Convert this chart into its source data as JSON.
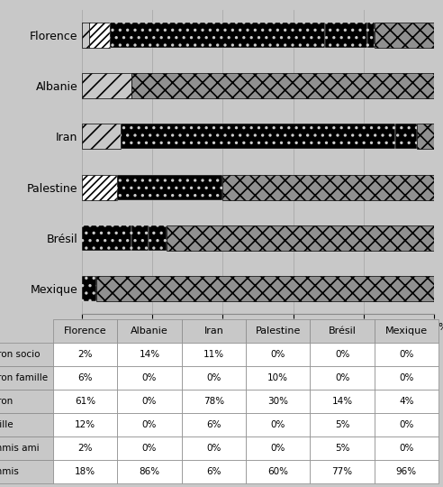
{
  "categories": [
    "Florence",
    "Albanie",
    "Iran",
    "Palestine",
    "Brésil",
    "Mexique"
  ],
  "row_labels": [
    "patron socio",
    "patron famille",
    "patron",
    "famille",
    "commis ami",
    "commis"
  ],
  "data": {
    "Florence": [
      2,
      6,
      61,
      12,
      2,
      18
    ],
    "Albanie": [
      14,
      0,
      0,
      0,
      0,
      86
    ],
    "Iran": [
      11,
      0,
      78,
      6,
      0,
      6
    ],
    "Palestine": [
      0,
      10,
      30,
      0,
      0,
      60
    ],
    "Brésil": [
      0,
      0,
      14,
      5,
      5,
      77
    ],
    "Mexique": [
      0,
      0,
      4,
      0,
      0,
      96
    ]
  },
  "plot_order": [
    "Mexique",
    "Brésil",
    "Palestine",
    "Iran",
    "Albanie",
    "Florence"
  ],
  "table_col_labels": [
    "Florence",
    "Albanie",
    "Iran",
    "Palestine",
    "Brésil",
    "Mexique"
  ],
  "seg_order_lr": [
    "patron socio",
    "patron famille",
    "patron",
    "famille",
    "commis ami",
    "commis"
  ],
  "segment_styles": {
    "commis": {
      "hatch": "xx",
      "facecolor": "#909090",
      "edgecolor": "#000000",
      "lw": 0.5
    },
    "commis ami": {
      "hatch": "..",
      "facecolor": "#000000",
      "edgecolor": "#cccccc",
      "lw": 0.3
    },
    "famille": {
      "hatch": "..",
      "facecolor": "#000000",
      "edgecolor": "#cccccc",
      "lw": 0.3
    },
    "patron": {
      "hatch": "..",
      "facecolor": "#000000",
      "edgecolor": "#cccccc",
      "lw": 0.3
    },
    "patron famille": {
      "hatch": "////",
      "facecolor": "#ffffff",
      "edgecolor": "#000000",
      "lw": 0.5
    },
    "patron socio": {
      "hatch": "//",
      "facecolor": "#c8c8c8",
      "edgecolor": "#000000",
      "lw": 0.5
    }
  },
  "bg_color": "#c8c8c8",
  "bar_height": 0.5,
  "fig_width": 4.92,
  "fig_height": 5.4,
  "dpi": 100
}
